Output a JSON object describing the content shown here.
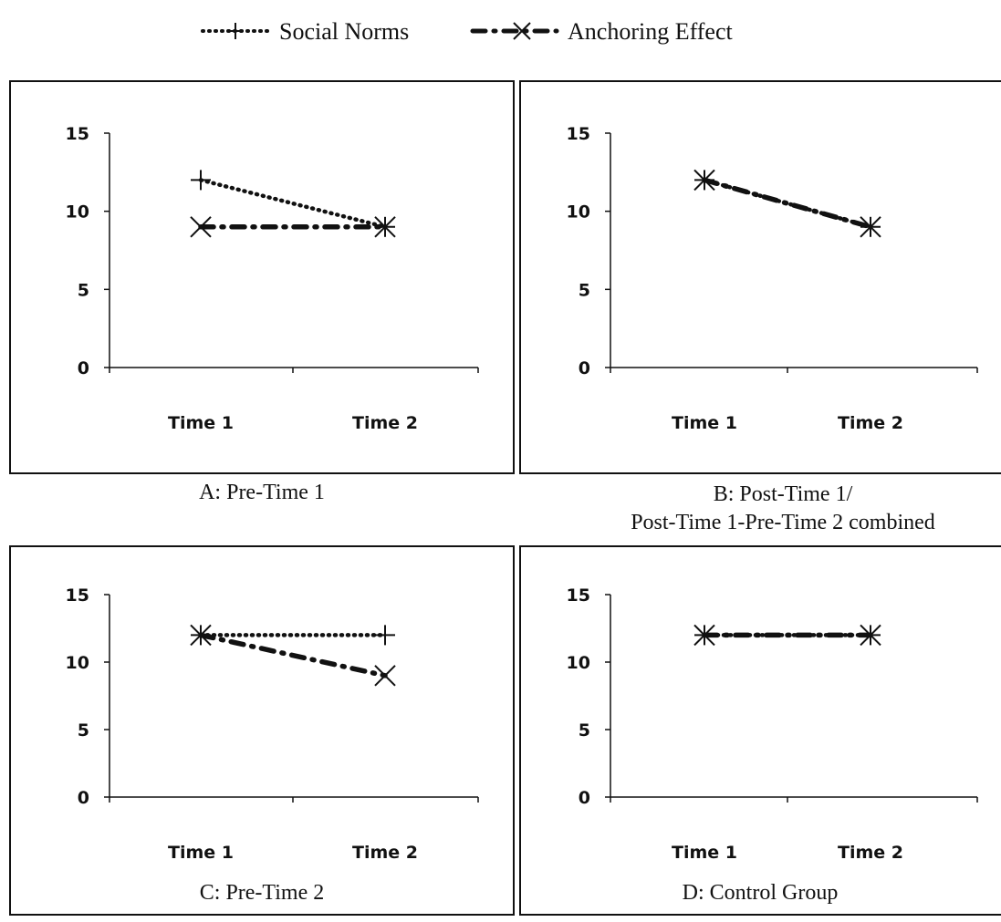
{
  "legend": {
    "items": [
      {
        "name": "Social Norms",
        "marker": "plus",
        "dash": "dotted",
        "color": "#111111"
      },
      {
        "name": "Anchoring Effect",
        "marker": "x",
        "dash": "dash-dot",
        "color": "#111111"
      }
    ]
  },
  "chart_data": [
    {
      "type": "line",
      "caption": "A: Pre-Time 1",
      "categories": [
        "Time 1",
        "Time 2"
      ],
      "yticks": [
        0,
        5,
        10,
        15
      ],
      "ylim": [
        0,
        15
      ],
      "series": [
        {
          "name": "Social Norms",
          "values": [
            12,
            9
          ]
        },
        {
          "name": "Anchoring Effect",
          "values": [
            9,
            9
          ]
        }
      ]
    },
    {
      "type": "line",
      "caption": "B:  Post-Time 1/\nPost-Time 1-Pre-Time 2 combined",
      "categories": [
        "Time 1",
        "Time 2"
      ],
      "yticks": [
        0,
        5,
        10,
        15
      ],
      "ylim": [
        0,
        15
      ],
      "series": [
        {
          "name": "Social Norms",
          "values": [
            12,
            9
          ]
        },
        {
          "name": "Anchoring Effect",
          "values": [
            12,
            9
          ]
        }
      ]
    },
    {
      "type": "line",
      "caption": "C:  Pre-Time 2",
      "categories": [
        "Time 1",
        "Time 2"
      ],
      "yticks": [
        0,
        5,
        10,
        15
      ],
      "ylim": [
        0,
        15
      ],
      "series": [
        {
          "name": "Social Norms",
          "values": [
            12,
            12
          ]
        },
        {
          "name": "Anchoring Effect",
          "values": [
            12,
            9
          ]
        }
      ]
    },
    {
      "type": "line",
      "caption": "D: Control Group",
      "categories": [
        "Time 1",
        "Time 2"
      ],
      "yticks": [
        0,
        5,
        10,
        15
      ],
      "ylim": [
        0,
        15
      ],
      "series": [
        {
          "name": "Social Norms",
          "values": [
            12,
            12
          ]
        },
        {
          "name": "Anchoring Effect",
          "values": [
            12,
            12
          ]
        }
      ]
    }
  ]
}
